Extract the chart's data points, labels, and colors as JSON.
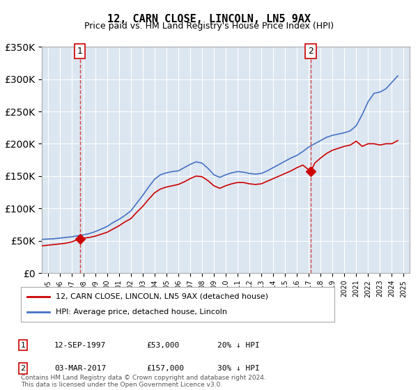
{
  "title": "12, CARN CLOSE, LINCOLN, LN5 9AX",
  "subtitle": "Price paid vs. HM Land Registry's House Price Index (HPI)",
  "ylabel": "",
  "xlabel": "",
  "bg_color": "#dce6f1",
  "plot_bg_color": "#dce6f1",
  "red_line_color": "#cc0000",
  "blue_line_color": "#4472c4",
  "annotation1_year": 1997.7,
  "annotation2_year": 2017.17,
  "annotation1_value": 53000,
  "annotation2_value": 157000,
  "ylim_min": 0,
  "ylim_max": 350000,
  "xlim_min": 1994.5,
  "xlim_max": 2025.5,
  "footnote": "Contains HM Land Registry data © Crown copyright and database right 2024.\nThis data is licensed under the Open Government Licence v3.0.",
  "legend_line1": "12, CARN CLOSE, LINCOLN, LN5 9AX (detached house)",
  "legend_line2": "HPI: Average price, detached house, Lincoln",
  "ann1_label": "1",
  "ann2_label": "2",
  "ann1_date": "12-SEP-1997",
  "ann1_price": "£53,000",
  "ann1_hpi": "20% ↓ HPI",
  "ann2_date": "03-MAR-2017",
  "ann2_price": "£157,000",
  "ann2_hpi": "30% ↓ HPI",
  "hpi_data": {
    "years": [
      1994.5,
      1995.0,
      1995.5,
      1996.0,
      1996.5,
      1997.0,
      1997.5,
      1998.0,
      1998.5,
      1999.0,
      1999.5,
      2000.0,
      2000.5,
      2001.0,
      2001.5,
      2002.0,
      2002.5,
      2003.0,
      2003.5,
      2004.0,
      2004.5,
      2005.0,
      2005.5,
      2006.0,
      2006.5,
      2007.0,
      2007.5,
      2008.0,
      2008.5,
      2009.0,
      2009.5,
      2010.0,
      2010.5,
      2011.0,
      2011.5,
      2012.0,
      2012.5,
      2013.0,
      2013.5,
      2014.0,
      2014.5,
      2015.0,
      2015.5,
      2016.0,
      2016.5,
      2017.0,
      2017.5,
      2018.0,
      2018.5,
      2019.0,
      2019.5,
      2020.0,
      2020.5,
      2021.0,
      2021.5,
      2022.0,
      2022.5,
      2023.0,
      2023.5,
      2024.0,
      2024.5
    ],
    "values": [
      52000,
      52500,
      53000,
      54000,
      55000,
      56000,
      57500,
      59000,
      61000,
      64000,
      68000,
      72000,
      78000,
      83000,
      89000,
      96000,
      108000,
      120000,
      133000,
      145000,
      152000,
      155000,
      157000,
      158000,
      163000,
      168000,
      172000,
      170000,
      162000,
      152000,
      148000,
      152000,
      155000,
      157000,
      156000,
      154000,
      153000,
      154000,
      158000,
      163000,
      168000,
      173000,
      178000,
      182000,
      188000,
      195000,
      200000,
      205000,
      210000,
      213000,
      215000,
      217000,
      220000,
      228000,
      245000,
      265000,
      278000,
      280000,
      285000,
      295000,
      305000
    ]
  },
  "red_data": {
    "years": [
      1994.5,
      1995.0,
      1995.5,
      1996.0,
      1996.5,
      1997.0,
      1997.7,
      1998.0,
      1998.5,
      1999.0,
      1999.5,
      2000.0,
      2000.5,
      2001.0,
      2001.5,
      2002.0,
      2002.5,
      2003.0,
      2003.5,
      2004.0,
      2004.5,
      2005.0,
      2005.5,
      2006.0,
      2006.5,
      2007.0,
      2007.5,
      2008.0,
      2008.5,
      2009.0,
      2009.5,
      2010.0,
      2010.5,
      2011.0,
      2011.5,
      2012.0,
      2012.5,
      2013.0,
      2013.5,
      2014.0,
      2014.5,
      2015.0,
      2015.5,
      2016.0,
      2016.5,
      2017.17,
      2017.5,
      2018.0,
      2018.5,
      2019.0,
      2019.5,
      2020.0,
      2020.5,
      2021.0,
      2021.5,
      2022.0,
      2022.5,
      2023.0,
      2023.5,
      2024.0,
      2024.5
    ],
    "values": [
      42000,
      43000,
      44000,
      45000,
      46000,
      48000,
      53000,
      54000,
      55000,
      57000,
      60000,
      63000,
      68000,
      73000,
      79000,
      84000,
      94000,
      103000,
      114000,
      124000,
      130000,
      133000,
      135000,
      137000,
      141000,
      146000,
      150000,
      149000,
      143000,
      135000,
      131000,
      135000,
      138000,
      140000,
      140000,
      138000,
      137000,
      138000,
      142000,
      146000,
      150000,
      154000,
      158000,
      163000,
      167000,
      157000,
      170000,
      178000,
      185000,
      190000,
      193000,
      196000,
      198000,
      204000,
      196000,
      200000,
      200000,
      198000,
      200000,
      200000,
      205000
    ]
  }
}
